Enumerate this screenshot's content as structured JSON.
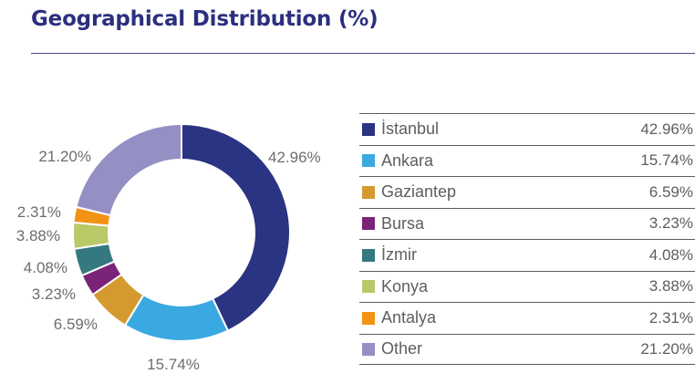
{
  "title": "Geographical Distribution (%)",
  "chart_data": {
    "type": "pie",
    "donut": true,
    "title": "Geographical Distribution (%)",
    "categories": [
      "İstanbul",
      "Ankara",
      "Gaziantep",
      "Bursa",
      "İzmir",
      "Konya",
      "Antalya",
      "Other"
    ],
    "values": [
      42.96,
      15.74,
      6.59,
      3.23,
      4.08,
      3.88,
      2.31,
      21.2
    ],
    "labels": [
      "42.96%",
      "15.74%",
      "6.59%",
      "3.23%",
      "4.08%",
      "3.88%",
      "2.31%",
      "21.20%"
    ],
    "colors": [
      "#2b3383",
      "#3aa9e2",
      "#d49a2f",
      "#7b2477",
      "#35787f",
      "#b9c968",
      "#f39314",
      "#9590c3"
    ],
    "legend": "right"
  }
}
